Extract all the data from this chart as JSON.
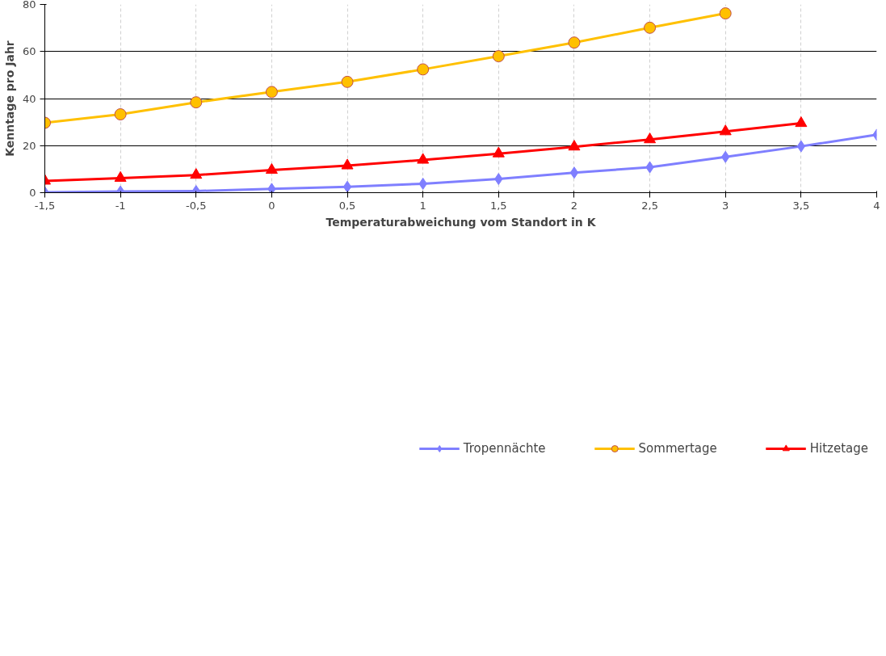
{
  "chart_data": {
    "type": "line",
    "xlabel": "Temperaturabweichung vom Standort in K",
    "ylabel": "Kenntage pro Jahr",
    "categories": [
      "-1,5",
      "-1",
      "-0,5",
      "0",
      "0,5",
      "1",
      "1,5",
      "2",
      "2,5",
      "3",
      "3,5",
      "4"
    ],
    "series": [
      {
        "name": "Tropennächte",
        "color": "#7f7fff",
        "marker": "diamond",
        "values": [
          0.2,
          0.5,
          0.7,
          1.6,
          2.5,
          3.8,
          5.8,
          8.5,
          10.8,
          15.2,
          19.7,
          24.6
        ]
      },
      {
        "name": "Sommertage",
        "color": "#ffc000",
        "marker": "circle",
        "values": [
          29.7,
          33.3,
          38.4,
          42.8,
          47.1,
          52.4,
          58.0,
          63.8,
          70.1,
          76.2,
          null,
          null
        ]
      },
      {
        "name": "Hitzetage",
        "color": "#ff0000",
        "marker": "triangle",
        "values": [
          5.0,
          6.2,
          7.5,
          9.6,
          11.5,
          13.9,
          16.6,
          19.5,
          22.6,
          26.0,
          29.5,
          null
        ]
      }
    ],
    "ylim": [
      0,
      80
    ],
    "yticks": [
      0,
      20,
      40,
      60,
      80
    ],
    "grid": true,
    "legend": "bottom"
  }
}
